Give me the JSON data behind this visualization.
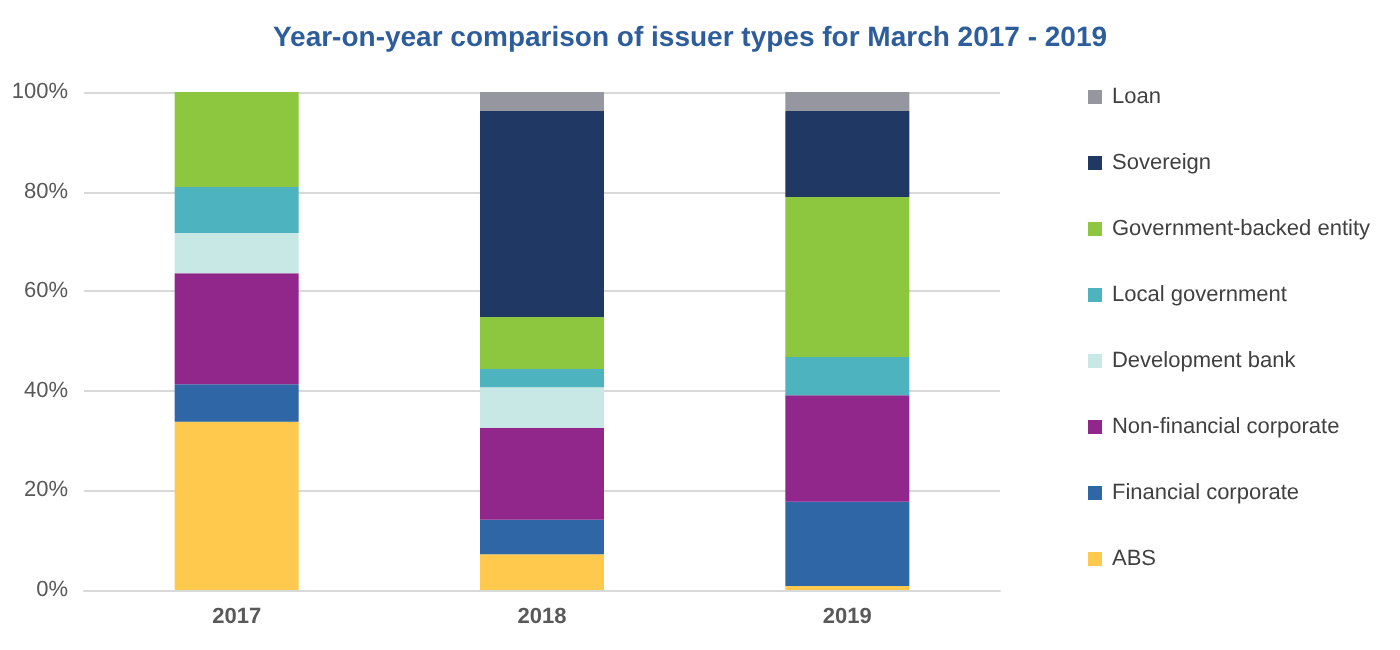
{
  "chart_data": {
    "type": "bar",
    "title": "Year-on-year comparison of issuer types for March 2017 - 2019",
    "categories": [
      "2017",
      "2018",
      "2019"
    ],
    "stacked": true,
    "ylim": [
      0,
      100
    ],
    "yticks": [
      {
        "value": 0,
        "label": "0%"
      },
      {
        "value": 20,
        "label": "20%"
      },
      {
        "value": 40,
        "label": "40%"
      },
      {
        "value": 60,
        "label": "60%"
      },
      {
        "value": 80,
        "label": "80%"
      },
      {
        "value": 100,
        "label": "100%"
      }
    ],
    "grid": "y",
    "legend": "right",
    "series": [
      {
        "name": "ABS",
        "color": "#fec94c",
        "values": [
          33.8,
          7.2,
          0.8
        ]
      },
      {
        "name": "Financial corporate",
        "color": "#2e66a6",
        "values": [
          7.5,
          6.9,
          16.9
        ]
      },
      {
        "name": "Non-financial corporate",
        "color": "#91278b",
        "values": [
          22.3,
          18.5,
          21.4
        ]
      },
      {
        "name": "Development bank",
        "color": "#c8e8e6",
        "values": [
          8.1,
          8.1,
          0
        ]
      },
      {
        "name": "Local government",
        "color": "#4db3bf",
        "values": [
          9.2,
          3.7,
          7.7
        ]
      },
      {
        "name": "Government-backed entity",
        "color": "#8dc63f",
        "values": [
          19.1,
          10.4,
          32.1
        ]
      },
      {
        "name": "Sovereign",
        "color": "#203864",
        "values": [
          0,
          41.4,
          17.3
        ]
      },
      {
        "name": "Loan",
        "color": "#9696a0",
        "values": [
          0,
          3.8,
          3.8
        ]
      }
    ]
  }
}
